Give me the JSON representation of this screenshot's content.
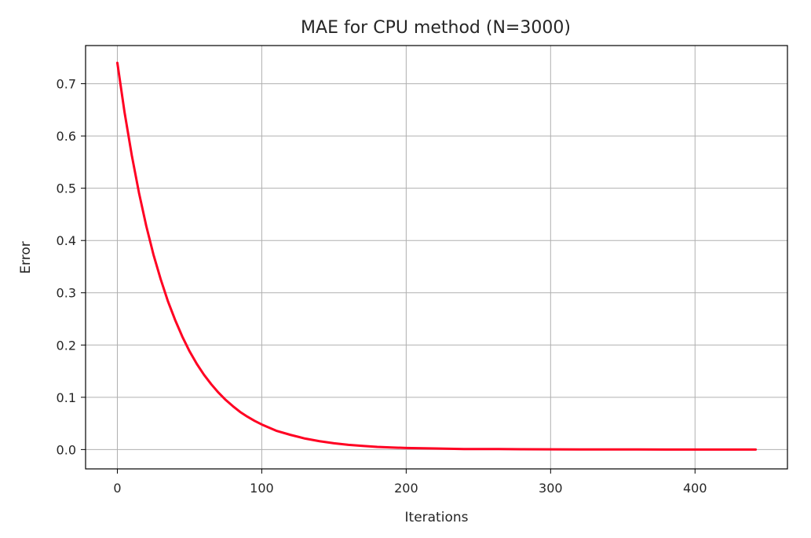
{
  "chart_data": {
    "type": "line",
    "title": "MAE for CPU method (N=3000)",
    "xlabel": "Iterations",
    "ylabel": "Error",
    "xlim": [
      -22,
      464
    ],
    "ylim": [
      -0.037,
      0.773
    ],
    "xticks": [
      0,
      100,
      200,
      300,
      400
    ],
    "xtick_labels": [
      "0",
      "100",
      "200",
      "300",
      "400"
    ],
    "yticks": [
      0.0,
      0.1,
      0.2,
      0.3,
      0.4,
      0.5,
      0.6,
      0.7
    ],
    "ytick_labels": [
      "0.0",
      "0.1",
      "0.2",
      "0.3",
      "0.4",
      "0.5",
      "0.6",
      "0.7"
    ],
    "grid": true,
    "series": [
      {
        "color": "#ff0022",
        "x": [
          0,
          5,
          10,
          15,
          20,
          25,
          30,
          35,
          40,
          45,
          50,
          55,
          60,
          65,
          70,
          75,
          80,
          85,
          90,
          95,
          100,
          110,
          120,
          130,
          140,
          150,
          160,
          170,
          180,
          190,
          200,
          220,
          240,
          260,
          280,
          300,
          320,
          340,
          360,
          380,
          400,
          420,
          442
        ],
        "y": [
          0.74,
          0.645,
          0.563,
          0.491,
          0.428,
          0.373,
          0.326,
          0.284,
          0.248,
          0.216,
          0.188,
          0.164,
          0.143,
          0.125,
          0.109,
          0.095,
          0.083,
          0.072,
          0.063,
          0.055,
          0.048,
          0.036,
          0.028,
          0.021,
          0.016,
          0.012,
          0.009,
          0.007,
          0.005,
          0.004,
          0.003,
          0.002,
          0.001,
          0.001,
          0.0005,
          0.0003,
          0.0002,
          0.0001,
          0.0001,
          0.0,
          0.0,
          0.0,
          0.0
        ]
      }
    ]
  }
}
